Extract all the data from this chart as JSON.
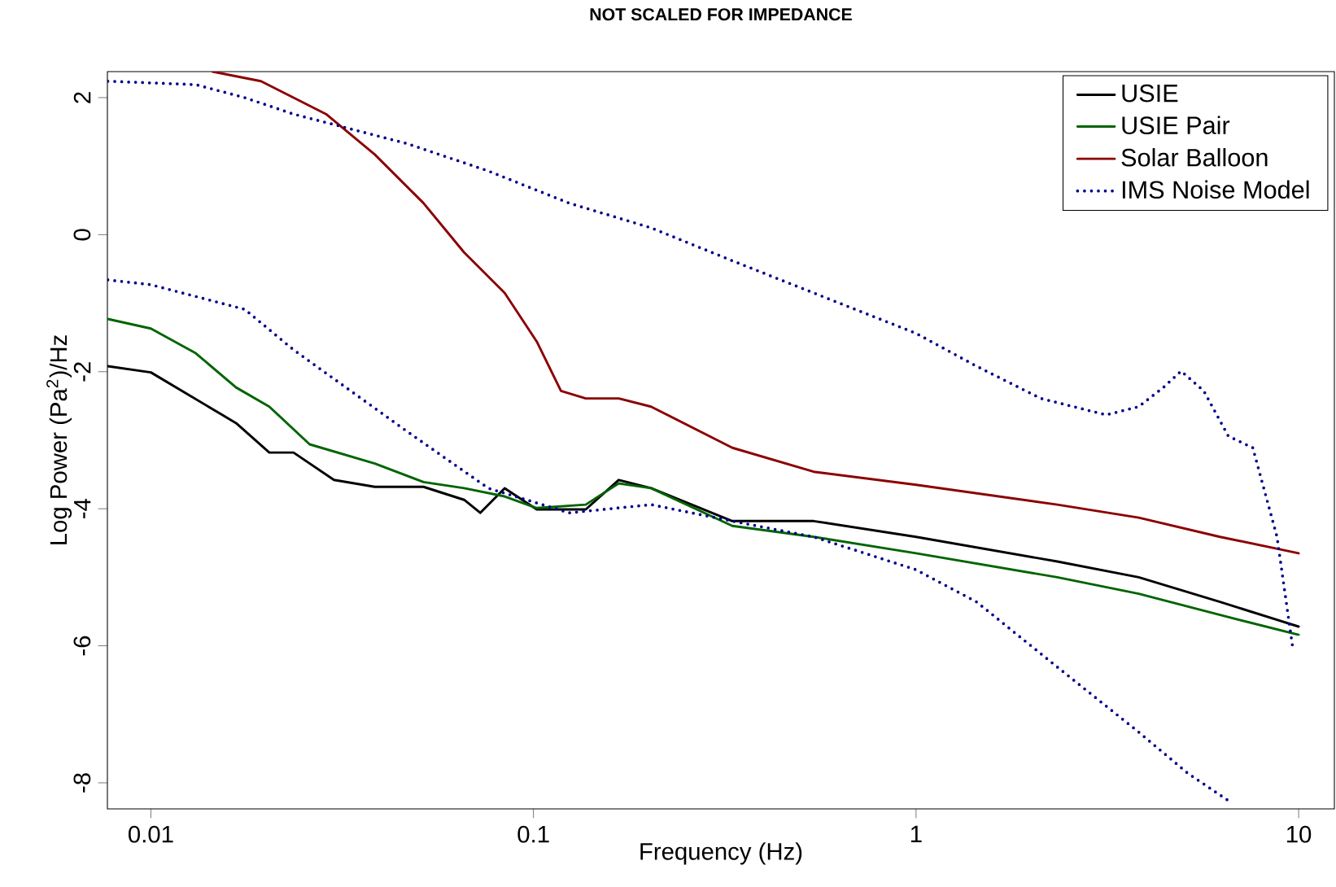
{
  "chart_data": {
    "type": "line",
    "title": "NOT SCALED FOR IMPEDANCE",
    "xlabel": "Frequency (Hz)",
    "ylabel": "Log Power (Pa$^{2}$)/Hz",
    "log": "x",
    "xlim": [
      0.0077,
      12.4
    ],
    "ylim": [
      -8.38,
      2.38
    ],
    "xticks": [
      0.01,
      0.1,
      1,
      10
    ],
    "yticks": [
      -8,
      -6,
      -4,
      -2,
      0,
      2
    ],
    "legend": "top right",
    "series": [
      {
        "name": "USIE",
        "color": "#000000",
        "line_style": "solid",
        "x": [
          0.00772,
          0.01,
          0.0167,
          0.0204,
          0.0236,
          0.0301,
          0.0385,
          0.0516,
          0.0659,
          0.0726,
          0.0841,
          0.102,
          0.137,
          0.167,
          0.203,
          0.331,
          0.54,
          1,
          2.34,
          3.82,
          6.23,
          10
        ],
        "values": [
          -1.92,
          -2.01,
          -2.75,
          -3.18,
          -3.18,
          -3.58,
          -3.68,
          -3.68,
          -3.87,
          -4.06,
          -3.7,
          -4.01,
          -4.01,
          -3.58,
          -3.7,
          -4.18,
          -4.18,
          -4.41,
          -4.77,
          -5.0,
          -5.36,
          -5.72
        ]
      },
      {
        "name": "USIE Pair",
        "color": "#006400",
        "line_style": "solid",
        "x": [
          0.00772,
          0.01,
          0.0131,
          0.0167,
          0.0204,
          0.026,
          0.0385,
          0.0516,
          0.0659,
          0.0841,
          0.102,
          0.137,
          0.167,
          0.203,
          0.331,
          0.54,
          1,
          2.34,
          3.82,
          6.23,
          10
        ],
        "values": [
          -1.23,
          -1.37,
          -1.73,
          -2.23,
          -2.51,
          -3.06,
          -3.34,
          -3.61,
          -3.7,
          -3.82,
          -3.99,
          -3.94,
          -3.63,
          -3.7,
          -4.25,
          -4.41,
          -4.65,
          -5.0,
          -5.24,
          -5.55,
          -5.84
        ]
      },
      {
        "name": "Solar Balloon",
        "color": "#8b0000",
        "line_style": "solid",
        "x": [
          0.0145,
          0.0194,
          0.0236,
          0.0287,
          0.0385,
          0.0516,
          0.0659,
          0.0841,
          0.102,
          0.118,
          0.137,
          0.167,
          0.203,
          0.331,
          0.54,
          1,
          2.34,
          3.82,
          6.23,
          10
        ],
        "values": [
          2.38,
          2.24,
          2.0,
          1.76,
          1.17,
          0.46,
          -0.26,
          -0.85,
          -1.56,
          -2.28,
          -2.39,
          -2.39,
          -2.51,
          -3.11,
          -3.46,
          -3.65,
          -3.94,
          -4.13,
          -4.41,
          -4.65
        ]
      },
      {
        "name": "IMS Noise Model",
        "color": "#00008b",
        "line_style": "dotted",
        "x": [
          0.00772,
          0.0131,
          0.0176,
          0.0236,
          0.0467,
          0.0762,
          0.124,
          0.203,
          0.331,
          0.54,
          1,
          1.44,
          2.12,
          3.14,
          3.82,
          4.43,
          4.93,
          5.65,
          6.55,
          7.59,
          8.78,
          9.68
        ],
        "values": [
          2.24,
          2.19,
          2.0,
          1.76,
          1.33,
          0.93,
          0.46,
          0.1,
          -0.38,
          -0.85,
          -1.44,
          -1.92,
          -2.39,
          -2.63,
          -2.51,
          -2.23,
          -1.99,
          -2.28,
          -2.94,
          -3.11,
          -4.41,
          -6.08
        ]
      },
      {
        "color": "#00008b",
        "line_style": "dotted",
        "x": [
          0.00772,
          0.01,
          0.0176,
          0.0236,
          0.0467,
          0.0762,
          0.124,
          0.203,
          0.331,
          0.54,
          1,
          1.44,
          2.34,
          3.82,
          5.13,
          6.55
        ],
        "values": [
          -0.66,
          -0.73,
          -1.09,
          -1.68,
          -2.87,
          -3.7,
          -4.06,
          -3.94,
          -4.18,
          -4.41,
          -4.89,
          -5.36,
          -6.31,
          -7.26,
          -7.86,
          -8.26
        ]
      }
    ]
  }
}
